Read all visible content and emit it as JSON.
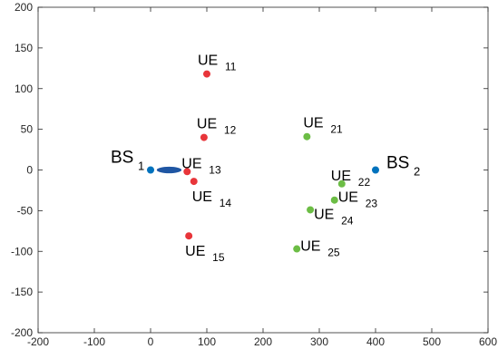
{
  "chart_data": {
    "type": "scatter",
    "title": "",
    "xlabel": "",
    "ylabel": "",
    "xlim": [
      -200,
      600
    ],
    "ylim": [
      -200,
      200
    ],
    "grid": false,
    "xticks": [
      "-200",
      "-100",
      "0",
      "100",
      "200",
      "300",
      "400",
      "500",
      "600"
    ],
    "yticks": [
      "200",
      "150",
      "100",
      "50",
      "0",
      "-50",
      "-100",
      "-150",
      "-200"
    ],
    "colors": {
      "bs": "#0072bd",
      "cluster1": "#e8353a",
      "cluster2": "#6cbd45",
      "beam": "#1f56a3"
    },
    "base_stations": [
      {
        "label": "BS",
        "sub": "1",
        "x": 0,
        "y": 0
      },
      {
        "label": "BS",
        "sub": "2",
        "x": 400,
        "y": 0
      }
    ],
    "beam_ellipse": {
      "cx": 33,
      "cy": 0,
      "rx": 22,
      "ry": 4
    },
    "series": [
      {
        "points": [
          {
            "label": "UE",
            "sub": "11",
            "x": 100,
            "y": 118
          },
          {
            "label": "UE",
            "sub": "12",
            "x": 95,
            "y": 40
          },
          {
            "label": "UE",
            "sub": "13",
            "x": 65,
            "y": -2
          },
          {
            "label": "UE",
            "sub": "14",
            "x": 77,
            "y": -14
          },
          {
            "label": "UE",
            "sub": "15",
            "x": 68,
            "y": -81
          }
        ]
      },
      {
        "points": [
          {
            "label": "UE",
            "sub": "21",
            "x": 278,
            "y": 41
          },
          {
            "label": "UE",
            "sub": "22",
            "x": 340,
            "y": -17
          },
          {
            "label": "UE",
            "sub": "23",
            "x": 327,
            "y": -37
          },
          {
            "label": "UE",
            "sub": "24",
            "x": 284,
            "y": -49
          },
          {
            "label": "UE",
            "sub": "25",
            "x": 260,
            "y": -97
          }
        ]
      }
    ]
  }
}
